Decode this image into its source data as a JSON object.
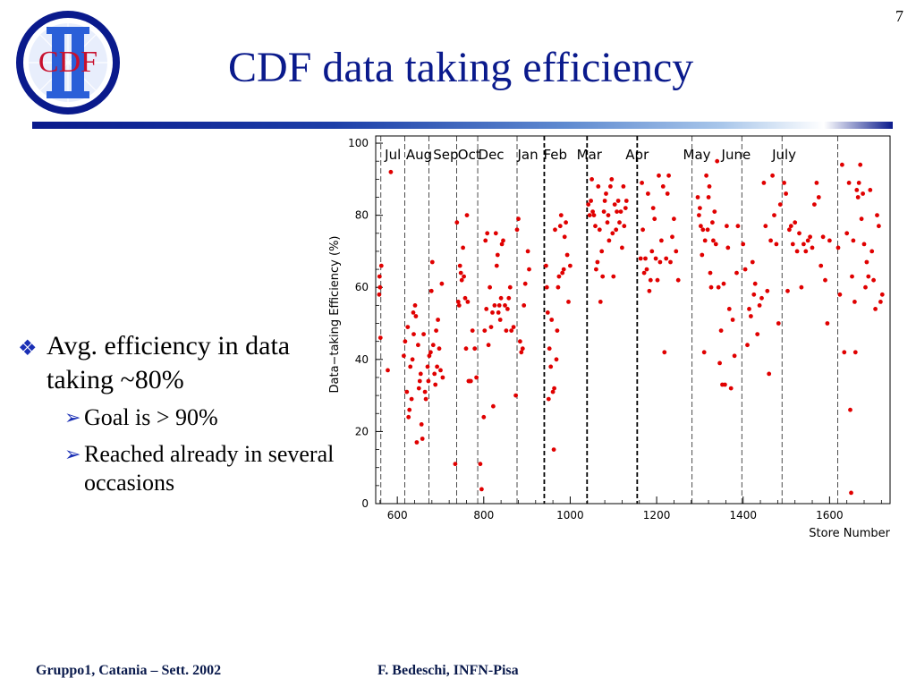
{
  "slide_number": "7",
  "title": "CDF data taking efficiency",
  "logo": {
    "icon": "cdf-ii-logo-icon",
    "text": "CDF",
    "colors": {
      "ring": "#0a1a8c",
      "bars": "#2a5fd8",
      "text": "#c8102e"
    }
  },
  "bullets": [
    {
      "text": "Avg. efficiency in data taking  ~80%",
      "marker": "diamond-cluster-bullet-icon",
      "sub": [
        {
          "text": "Goal is > 90%",
          "marker": "arrow-bullet-icon"
        },
        {
          "text": "Reached already in several occasions",
          "marker": "arrow-bullet-icon"
        }
      ]
    }
  ],
  "footer": {
    "left": "Gruppo1, Catania – Sett. 2002",
    "right": "F. Bedeschi, INFN-Pisa"
  },
  "colors": {
    "title": "#0a1a8c",
    "points": "#e00000",
    "bullet_marker": "#1a2fb5"
  },
  "chart_data": {
    "type": "scatter",
    "xlabel": "Store Number",
    "ylabel": "Data−taking Efficiency (%)",
    "xlim": [
      550,
      1740
    ],
    "ylim": [
      0,
      102
    ],
    "xticks": [
      600,
      800,
      1000,
      1200,
      1400,
      1600
    ],
    "yticks": [
      0,
      20,
      40,
      60,
      80,
      100
    ],
    "month_boundaries": [
      {
        "x": 562,
        "style": "dashed"
      },
      {
        "x": 617,
        "style": "dashed"
      },
      {
        "x": 673,
        "style": "dashed"
      },
      {
        "x": 737,
        "style": "dashed"
      },
      {
        "x": 786,
        "style": "dashed"
      },
      {
        "x": 877,
        "style": "dashed"
      },
      {
        "x": 940,
        "style": "thick-dashed"
      },
      {
        "x": 1039,
        "style": "thick-dashed"
      },
      {
        "x": 1155,
        "style": "thick-dashed"
      },
      {
        "x": 1282,
        "style": "dashed"
      },
      {
        "x": 1397,
        "style": "dashed"
      },
      {
        "x": 1490,
        "style": "dashed"
      },
      {
        "x": 1619,
        "style": "dashed"
      }
    ],
    "months": [
      {
        "label": "Jul",
        "x": 571
      },
      {
        "label": "Aug",
        "x": 620
      },
      {
        "label": "Sep",
        "x": 683
      },
      {
        "label": "Oct",
        "x": 740
      },
      {
        "label": "Dec",
        "x": 787
      },
      {
        "label": "Jan",
        "x": 878
      },
      {
        "label": "Feb",
        "x": 938
      },
      {
        "label": "Mar",
        "x": 1015
      },
      {
        "label": "Apr",
        "x": 1128
      },
      {
        "label": "May",
        "x": 1261
      },
      {
        "label": "June",
        "x": 1350
      },
      {
        "label": "July",
        "x": 1467
      }
    ],
    "points": [
      [
        558,
        58
      ],
      [
        559,
        63
      ],
      [
        560,
        60
      ],
      [
        561,
        46
      ],
      [
        563,
        66
      ],
      [
        578,
        37
      ],
      [
        585,
        92
      ],
      [
        615,
        41
      ],
      [
        618,
        45
      ],
      [
        622,
        31
      ],
      [
        624,
        49
      ],
      [
        626,
        24
      ],
      [
        628,
        26
      ],
      [
        630,
        38
      ],
      [
        633,
        29
      ],
      [
        635,
        40
      ],
      [
        637,
        53
      ],
      [
        638,
        47
      ],
      [
        641,
        55
      ],
      [
        643,
        52
      ],
      [
        645,
        17
      ],
      [
        648,
        44
      ],
      [
        650,
        32
      ],
      [
        652,
        34
      ],
      [
        654,
        36
      ],
      [
        656,
        22
      ],
      [
        658,
        18
      ],
      [
        661,
        47
      ],
      [
        664,
        31
      ],
      [
        666,
        29
      ],
      [
        670,
        38
      ],
      [
        672,
        34
      ],
      [
        674,
        41
      ],
      [
        677,
        42
      ],
      [
        679,
        59
      ],
      [
        681,
        67
      ],
      [
        683,
        44
      ],
      [
        686,
        36
      ],
      [
        688,
        33
      ],
      [
        690,
        48
      ],
      [
        692,
        38
      ],
      [
        694,
        51
      ],
      [
        697,
        43
      ],
      [
        700,
        37
      ],
      [
        703,
        61
      ],
      [
        705,
        35
      ],
      [
        734,
        11
      ],
      [
        738,
        78
      ],
      [
        741,
        56
      ],
      [
        743,
        55
      ],
      [
        745,
        66
      ],
      [
        747,
        64
      ],
      [
        749,
        62
      ],
      [
        752,
        71
      ],
      [
        754,
        63
      ],
      [
        757,
        57
      ],
      [
        759,
        43
      ],
      [
        761,
        80
      ],
      [
        763,
        56
      ],
      [
        765,
        34
      ],
      [
        767,
        34
      ],
      [
        770,
        34
      ],
      [
        774,
        48
      ],
      [
        779,
        43
      ],
      [
        783,
        35
      ],
      [
        792,
        11
      ],
      [
        795,
        4
      ],
      [
        800,
        24
      ],
      [
        802,
        48
      ],
      [
        804,
        73
      ],
      [
        806,
        54
      ],
      [
        808,
        75
      ],
      [
        811,
        44
      ],
      [
        814,
        60
      ],
      [
        817,
        49
      ],
      [
        820,
        53
      ],
      [
        822,
        27
      ],
      [
        825,
        55
      ],
      [
        828,
        75
      ],
      [
        830,
        66
      ],
      [
        832,
        69
      ],
      [
        834,
        53
      ],
      [
        836,
        55
      ],
      [
        838,
        51
      ],
      [
        840,
        57
      ],
      [
        842,
        72
      ],
      [
        845,
        73
      ],
      [
        849,
        55
      ],
      [
        852,
        48
      ],
      [
        855,
        54
      ],
      [
        858,
        57
      ],
      [
        861,
        60
      ],
      [
        864,
        48
      ],
      [
        869,
        49
      ],
      [
        874,
        30
      ],
      [
        877,
        76
      ],
      [
        880,
        79
      ],
      [
        884,
        45
      ],
      [
        887,
        42
      ],
      [
        890,
        43
      ],
      [
        893,
        55
      ],
      [
        896,
        61
      ],
      [
        902,
        70
      ],
      [
        905,
        65
      ],
      [
        944,
        66
      ],
      [
        946,
        60
      ],
      [
        948,
        53
      ],
      [
        950,
        29
      ],
      [
        952,
        43
      ],
      [
        955,
        38
      ],
      [
        957,
        51
      ],
      [
        960,
        31
      ],
      [
        962,
        15
      ],
      [
        963,
        32
      ],
      [
        965,
        76
      ],
      [
        968,
        40
      ],
      [
        970,
        48
      ],
      [
        972,
        60
      ],
      [
        974,
        63
      ],
      [
        977,
        77
      ],
      [
        979,
        80
      ],
      [
        982,
        64
      ],
      [
        985,
        65
      ],
      [
        987,
        74
      ],
      [
        990,
        78
      ],
      [
        993,
        69
      ],
      [
        996,
        56
      ],
      [
        1000,
        66
      ],
      [
        1042,
        83
      ],
      [
        1045,
        80
      ],
      [
        1048,
        84
      ],
      [
        1050,
        90
      ],
      [
        1052,
        81
      ],
      [
        1055,
        80
      ],
      [
        1058,
        77
      ],
      [
        1060,
        65
      ],
      [
        1063,
        67
      ],
      [
        1065,
        88
      ],
      [
        1068,
        76
      ],
      [
        1070,
        56
      ],
      [
        1073,
        70
      ],
      [
        1075,
        63
      ],
      [
        1078,
        81
      ],
      [
        1080,
        84
      ],
      [
        1083,
        86
      ],
      [
        1086,
        78
      ],
      [
        1088,
        80
      ],
      [
        1090,
        73
      ],
      [
        1093,
        88
      ],
      [
        1096,
        90
      ],
      [
        1098,
        75
      ],
      [
        1100,
        63
      ],
      [
        1103,
        83
      ],
      [
        1106,
        76
      ],
      [
        1108,
        81
      ],
      [
        1111,
        84
      ],
      [
        1114,
        78
      ],
      [
        1117,
        81
      ],
      [
        1120,
        71
      ],
      [
        1123,
        88
      ],
      [
        1125,
        77
      ],
      [
        1128,
        82
      ],
      [
        1130,
        84
      ],
      [
        1163,
        68
      ],
      [
        1166,
        89
      ],
      [
        1168,
        76
      ],
      [
        1171,
        64
      ],
      [
        1174,
        68
      ],
      [
        1177,
        65
      ],
      [
        1180,
        86
      ],
      [
        1183,
        59
      ],
      [
        1186,
        62
      ],
      [
        1189,
        70
      ],
      [
        1192,
        82
      ],
      [
        1195,
        79
      ],
      [
        1198,
        68
      ],
      [
        1202,
        62
      ],
      [
        1205,
        91
      ],
      [
        1208,
        67
      ],
      [
        1211,
        73
      ],
      [
        1215,
        88
      ],
      [
        1218,
        42
      ],
      [
        1222,
        68
      ],
      [
        1225,
        86
      ],
      [
        1228,
        91
      ],
      [
        1232,
        67
      ],
      [
        1236,
        74
      ],
      [
        1240,
        79
      ],
      [
        1245,
        70
      ],
      [
        1250,
        62
      ],
      [
        1295,
        85
      ],
      [
        1298,
        80
      ],
      [
        1300,
        82
      ],
      [
        1302,
        77
      ],
      [
        1305,
        69
      ],
      [
        1307,
        76
      ],
      [
        1310,
        42
      ],
      [
        1312,
        73
      ],
      [
        1315,
        91
      ],
      [
        1318,
        76
      ],
      [
        1320,
        85
      ],
      [
        1322,
        88
      ],
      [
        1324,
        64
      ],
      [
        1326,
        60
      ],
      [
        1329,
        78
      ],
      [
        1331,
        73
      ],
      [
        1334,
        81
      ],
      [
        1337,
        72
      ],
      [
        1340,
        95
      ],
      [
        1343,
        60
      ],
      [
        1346,
        39
      ],
      [
        1349,
        48
      ],
      [
        1352,
        33
      ],
      [
        1355,
        61
      ],
      [
        1358,
        33
      ],
      [
        1362,
        77
      ],
      [
        1365,
        71
      ],
      [
        1368,
        54
      ],
      [
        1372,
        32
      ],
      [
        1376,
        51
      ],
      [
        1380,
        41
      ],
      [
        1385,
        64
      ],
      [
        1388,
        77
      ],
      [
        1400,
        72
      ],
      [
        1405,
        65
      ],
      [
        1410,
        44
      ],
      [
        1414,
        54
      ],
      [
        1418,
        52
      ],
      [
        1422,
        67
      ],
      [
        1425,
        58
      ],
      [
        1428,
        61
      ],
      [
        1433,
        47
      ],
      [
        1438,
        55
      ],
      [
        1443,
        57
      ],
      [
        1448,
        89
      ],
      [
        1452,
        77
      ],
      [
        1456,
        59
      ],
      [
        1460,
        36
      ],
      [
        1464,
        73
      ],
      [
        1468,
        91
      ],
      [
        1472,
        80
      ],
      [
        1477,
        72
      ],
      [
        1482,
        50
      ],
      [
        1486,
        83
      ],
      [
        1495,
        89
      ],
      [
        1499,
        86
      ],
      [
        1503,
        59
      ],
      [
        1507,
        76
      ],
      [
        1511,
        77
      ],
      [
        1515,
        72
      ],
      [
        1520,
        78
      ],
      [
        1525,
        70
      ],
      [
        1530,
        75
      ],
      [
        1535,
        60
      ],
      [
        1540,
        72
      ],
      [
        1545,
        70
      ],
      [
        1550,
        73
      ],
      [
        1555,
        74
      ],
      [
        1560,
        71
      ],
      [
        1565,
        83
      ],
      [
        1570,
        89
      ],
      [
        1575,
        85
      ],
      [
        1580,
        66
      ],
      [
        1585,
        74
      ],
      [
        1590,
        62
      ],
      [
        1595,
        50
      ],
      [
        1600,
        73
      ],
      [
        1620,
        71
      ],
      [
        1624,
        58
      ],
      [
        1629,
        94
      ],
      [
        1634,
        42
      ],
      [
        1640,
        75
      ],
      [
        1645,
        89
      ],
      [
        1648,
        26
      ],
      [
        1650,
        3
      ],
      [
        1652,
        63
      ],
      [
        1655,
        73
      ],
      [
        1658,
        56
      ],
      [
        1660,
        42
      ],
      [
        1663,
        87
      ],
      [
        1666,
        85
      ],
      [
        1668,
        89
      ],
      [
        1671,
        94
      ],
      [
        1674,
        79
      ],
      [
        1677,
        86
      ],
      [
        1680,
        72
      ],
      [
        1683,
        60
      ],
      [
        1686,
        67
      ],
      [
        1690,
        63
      ],
      [
        1694,
        87
      ],
      [
        1698,
        70
      ],
      [
        1702,
        62
      ],
      [
        1706,
        54
      ],
      [
        1710,
        80
      ],
      [
        1714,
        77
      ],
      [
        1718,
        56
      ],
      [
        1722,
        58
      ]
    ]
  }
}
